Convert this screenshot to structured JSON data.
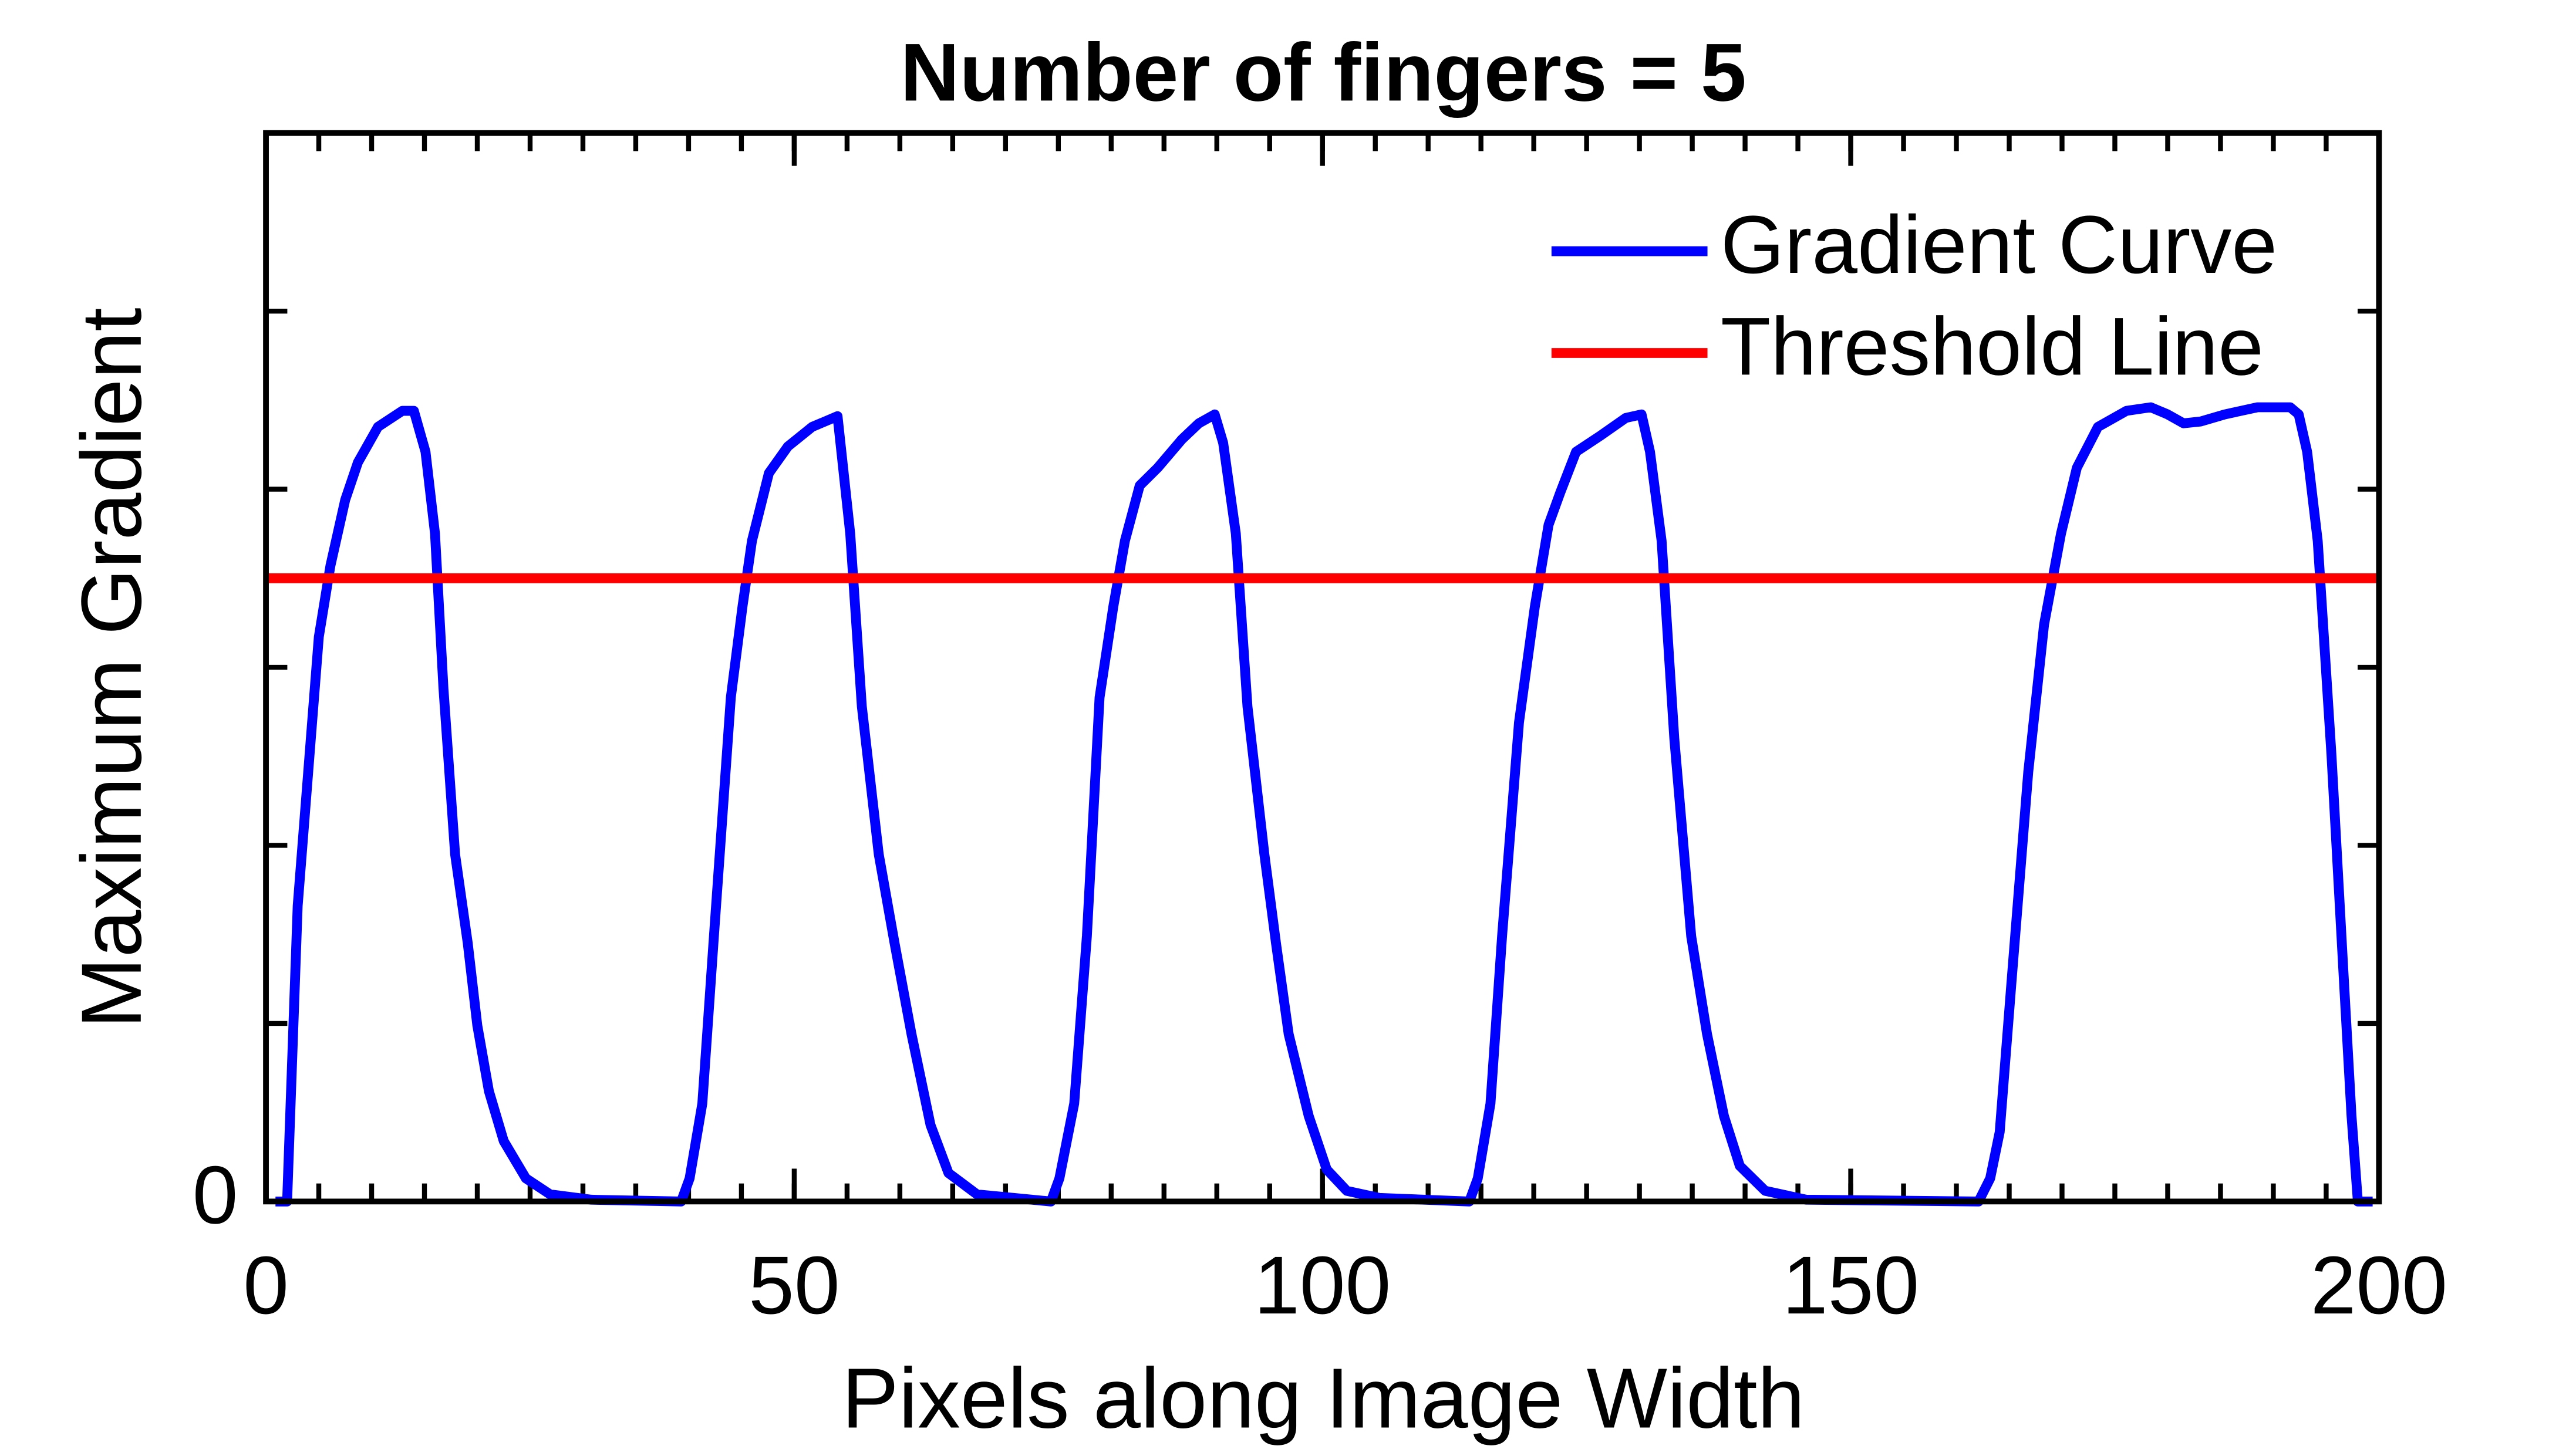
{
  "chart_data": {
    "type": "line",
    "title": "Number of fingers = 5",
    "xlabel": "Pixels along Image Width",
    "ylabel": "Maximum Gradient",
    "xlim": [
      0,
      200
    ],
    "xticks": [
      0,
      50,
      100,
      150,
      200
    ],
    "xminor_step": 5,
    "ylim": [
      0,
      6
    ],
    "yticks": [
      0
    ],
    "yminor_step": 1,
    "legend": "upper right",
    "series": [
      {
        "name": "Gradient Curve",
        "color": "#0000ff",
        "x": [
          0.9,
          2.0,
          3.0,
          5.0,
          6.1,
          7.5,
          8.7,
          10.6,
          12.9,
          14.0,
          15.1,
          16.0,
          16.8,
          17.9,
          19.1,
          20.0,
          21.1,
          22.5,
          24.6,
          26.9,
          30.8,
          39.3,
          40.1,
          41.3,
          42.4,
          44.0,
          45.1,
          46.0,
          47.6,
          49.4,
          51.7,
          54.1,
          55.3,
          56.4,
          58.0,
          59.5,
          61.1,
          62.9,
          64.6,
          67.3,
          74.3,
          75.1,
          76.5,
          77.7,
          78.9,
          80.2,
          81.3,
          82.7,
          84.4,
          86.7,
          88.3,
          89.8,
          90.6,
          91.8,
          92.9,
          94.5,
          95.6,
          96.8,
          98.7,
          100.4,
          102.3,
          105.4,
          113.9,
          114.7,
          115.9,
          117.0,
          118.6,
          120.1,
          121.4,
          122.5,
          124.0,
          126.3,
          128.7,
          130.2,
          131.0,
          132.1,
          133.3,
          134.9,
          136.4,
          138.0,
          139.5,
          141.9,
          145.8,
          162.1,
          163.2,
          164.1,
          165.2,
          166.8,
          168.3,
          169.9,
          171.4,
          173.4,
          176.1,
          178.4,
          180.0,
          181.5,
          183.1,
          185.4,
          188.5,
          191.6,
          192.4,
          193.2,
          194.2,
          195.5,
          196.7,
          197.4,
          198.0,
          199.4
        ],
        "values": [
          0,
          0,
          1.66,
          3.17,
          3.57,
          3.94,
          4.15,
          4.35,
          4.44,
          4.44,
          4.21,
          3.75,
          2.88,
          1.95,
          1.45,
          0.99,
          0.62,
          0.34,
          0.13,
          0.04,
          0.01,
          0,
          0.13,
          0.55,
          1.49,
          2.83,
          3.34,
          3.71,
          4.09,
          4.24,
          4.35,
          4.41,
          3.75,
          2.78,
          1.95,
          1.45,
          0.94,
          0.43,
          0.16,
          0.04,
          0,
          0.13,
          0.55,
          1.49,
          2.83,
          3.34,
          3.71,
          4.02,
          4.12,
          4.28,
          4.37,
          4.42,
          4.26,
          3.75,
          2.78,
          1.95,
          1.45,
          0.94,
          0.48,
          0.18,
          0.06,
          0.02,
          0,
          0.13,
          0.55,
          1.49,
          2.69,
          3.34,
          3.8,
          3.98,
          4.21,
          4.3,
          4.4,
          4.42,
          4.21,
          3.71,
          2.6,
          1.49,
          0.94,
          0.48,
          0.2,
          0.06,
          0.01,
          0,
          0.13,
          0.39,
          1.22,
          2.41,
          3.24,
          3.75,
          4.12,
          4.35,
          4.44,
          4.46,
          4.42,
          4.37,
          4.38,
          4.42,
          4.46,
          4.46,
          4.42,
          4.21,
          3.71,
          2.51,
          1.22,
          0.48,
          0,
          0
        ]
      },
      {
        "name": "Threshold Line",
        "color": "#ff0000",
        "x": [
          0,
          200
        ],
        "values": [
          3.5,
          3.5
        ]
      }
    ]
  }
}
